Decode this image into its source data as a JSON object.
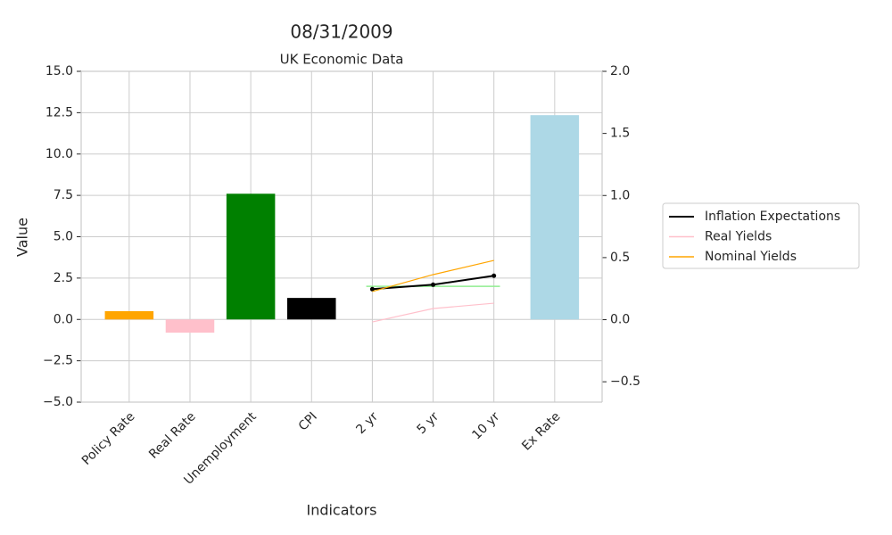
{
  "chart_data": {
    "type": "bar",
    "suptitle": "08/31/2009",
    "title": "UK Economic Data",
    "xlabel": "Indicators",
    "ylabel": "Value",
    "categories": [
      "Policy Rate",
      "Real Rate",
      "Unemployment",
      "CPI",
      "2 yr",
      "5 yr",
      "10 yr",
      "Ex Rate"
    ],
    "values": [
      0.5,
      -0.8,
      7.6,
      1.3,
      null,
      null,
      null,
      12.35
    ],
    "colors": [
      "#ffa500",
      "#ffc0cb",
      "#008000",
      "#000000",
      null,
      null,
      null,
      "#add8e6"
    ],
    "series": [
      {
        "name": "Inflation Expectations",
        "color": "#000000",
        "values": [
          null,
          null,
          null,
          null,
          1.83,
          2.1,
          2.64,
          null
        ]
      },
      {
        "name": "Real Yields",
        "color": "#ffc0cb",
        "values": [
          null,
          null,
          null,
          null,
          -0.15,
          0.66,
          0.98,
          null
        ]
      },
      {
        "name": "Nominal Yields",
        "color": "#ffa500",
        "values": [
          null,
          null,
          null,
          null,
          1.69,
          2.71,
          3.57,
          null
        ]
      }
    ],
    "reference_line": {
      "value": 2.0,
      "color": "#90ee90"
    },
    "xlim": [
      -0.79,
      7.78
    ],
    "ylim": [
      -5,
      15
    ],
    "yticks": [
      {
        "value": -5,
        "label": "−5.0"
      },
      {
        "value": -2.5,
        "label": "−2.5"
      },
      {
        "value": 0,
        "label": "0.0"
      },
      {
        "value": 2.5,
        "label": "2.5"
      },
      {
        "value": 5,
        "label": "5.0"
      },
      {
        "value": 7.5,
        "label": "7.5"
      },
      {
        "value": 10,
        "label": "10.0"
      },
      {
        "value": 12.5,
        "label": "12.5"
      },
      {
        "value": 15,
        "label": "15.0"
      }
    ],
    "y2lim": [
      -0.664,
      2.0
    ],
    "y2ticks": [
      {
        "value": -0.5,
        "label": "−0.5"
      },
      {
        "value": 0,
        "label": "0.0"
      },
      {
        "value": 0.5,
        "label": "0.5"
      },
      {
        "value": 1,
        "label": "1.0"
      },
      {
        "value": 1.5,
        "label": "1.5"
      },
      {
        "value": 2,
        "label": "2.0"
      }
    ],
    "grid": true,
    "legend": "outside right"
  }
}
